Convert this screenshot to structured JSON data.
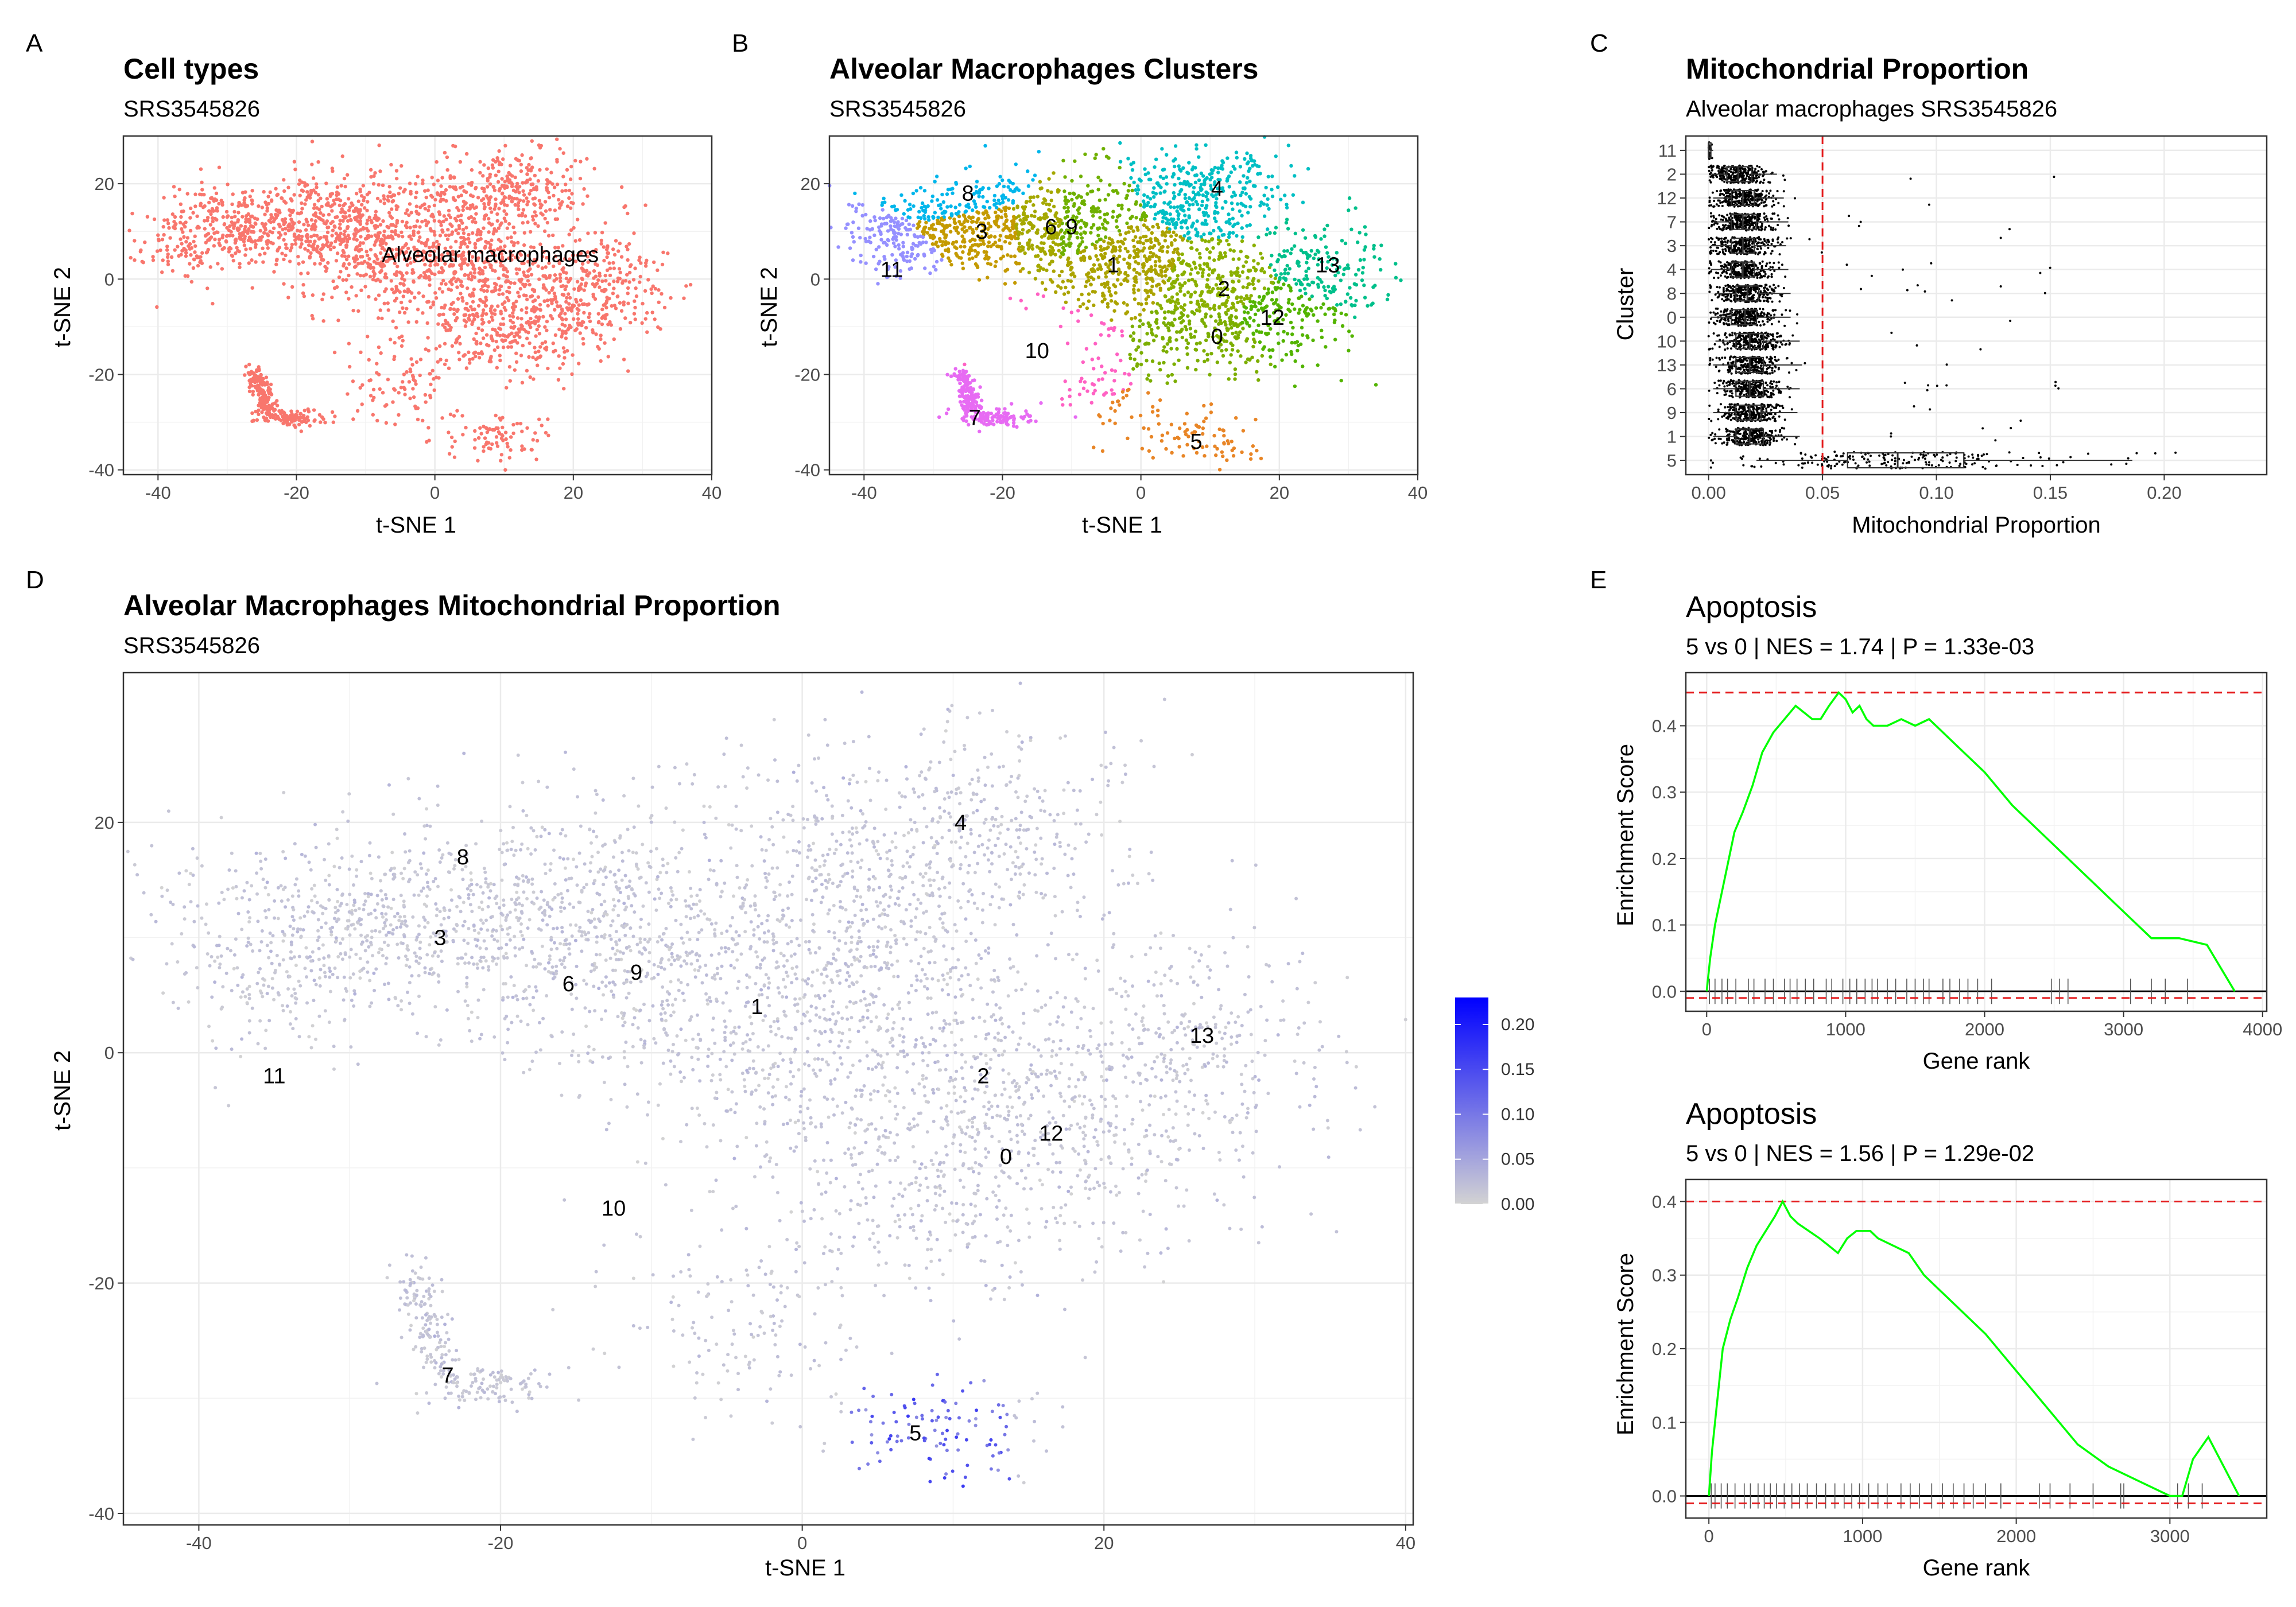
{
  "panel_labels": [
    "A",
    "B",
    "C",
    "D",
    "E"
  ],
  "chart_data": [
    {
      "id": "A",
      "type": "scatter",
      "title": "Cell types",
      "subtitle": "SRS3545826",
      "xlabel": "t-SNE 1",
      "ylabel": "t-SNE 2",
      "xlim": [
        -45,
        40
      ],
      "ylim": [
        -41,
        30
      ],
      "xticks": [
        -40,
        -20,
        0,
        20,
        40
      ],
      "yticks": [
        -40,
        -20,
        0,
        20
      ],
      "point_color": "#F8766D",
      "annotations": [
        {
          "text": "Alveolar macrophages",
          "x": 8,
          "y": 5
        }
      ]
    },
    {
      "id": "B",
      "type": "scatter",
      "title": "Alveolar Macrophages Clusters",
      "subtitle": "SRS3545826",
      "xlabel": "t-SNE 1",
      "ylabel": "t-SNE 2",
      "xlim": [
        -45,
        40
      ],
      "ylim": [
        -41,
        30
      ],
      "xticks": [
        -40,
        -20,
        0,
        20,
        40
      ],
      "yticks": [
        -40,
        -20,
        0,
        20
      ],
      "clusters": [
        {
          "label": "0",
          "x": 11,
          "y": -12,
          "color": "#7CAE00"
        },
        {
          "label": "1",
          "x": -4,
          "y": 3,
          "color": "#ABA300"
        },
        {
          "label": "2",
          "x": 12,
          "y": -2,
          "color": "#8BB000"
        },
        {
          "label": "3",
          "x": -23,
          "y": 10,
          "color": "#C49A00"
        },
        {
          "label": "4",
          "x": 11,
          "y": 19,
          "color": "#00BFC4"
        },
        {
          "label": "5",
          "x": 8,
          "y": -34,
          "color": "#E88526"
        },
        {
          "label": "6",
          "x": -13,
          "y": 11,
          "color": "#A5A800"
        },
        {
          "label": "7",
          "x": -24,
          "y": -29,
          "color": "#E76BF3"
        },
        {
          "label": "8",
          "x": -25,
          "y": 18,
          "color": "#00B6EB"
        },
        {
          "label": "9",
          "x": -10,
          "y": 11,
          "color": "#6FB000"
        },
        {
          "label": "10",
          "x": -15,
          "y": -15,
          "color": "#FF61C3"
        },
        {
          "label": "11",
          "x": -36,
          "y": 2,
          "color": "#9590FF"
        },
        {
          "label": "12",
          "x": 19,
          "y": -8,
          "color": "#53B400"
        },
        {
          "label": "13",
          "x": 27,
          "y": 3,
          "color": "#00C08B"
        }
      ]
    },
    {
      "id": "C",
      "type": "boxplot",
      "title": "Mitochondrial Proportion",
      "subtitle": "Alveolar macrophages SRS3545826",
      "xlabel": "Mitochondrial Proportion",
      "ylabel": "Cluster",
      "xlim": [
        -0.01,
        0.245
      ],
      "xticks": [
        "0.00",
        "0.05",
        "0.10",
        "0.15",
        "0.20"
      ],
      "reference_line": 0.05,
      "reference_color": "#E41A1C",
      "categories": [
        "11",
        "2",
        "12",
        "7",
        "3",
        "4",
        "8",
        "0",
        "10",
        "13",
        "6",
        "9",
        "1",
        "5"
      ],
      "boxes": [
        {
          "cluster": "11",
          "q1": 0.0,
          "median": 0.0,
          "q3": 0.001,
          "lo": 0.0,
          "hi": 0.002
        },
        {
          "cluster": "2",
          "q1": 0.008,
          "median": 0.013,
          "q3": 0.019,
          "lo": 0.001,
          "hi": 0.03
        },
        {
          "cluster": "12",
          "q1": 0.01,
          "median": 0.015,
          "q3": 0.02,
          "lo": 0.002,
          "hi": 0.033
        },
        {
          "cluster": "7",
          "q1": 0.01,
          "median": 0.015,
          "q3": 0.021,
          "lo": 0.002,
          "hi": 0.035
        },
        {
          "cluster": "3",
          "q1": 0.01,
          "median": 0.015,
          "q3": 0.02,
          "lo": 0.001,
          "hi": 0.034
        },
        {
          "cluster": "4",
          "q1": 0.01,
          "median": 0.015,
          "q3": 0.02,
          "lo": 0.001,
          "hi": 0.035
        },
        {
          "cluster": "8",
          "q1": 0.012,
          "median": 0.017,
          "q3": 0.022,
          "lo": 0.003,
          "hi": 0.036
        },
        {
          "cluster": "0",
          "q1": 0.01,
          "median": 0.016,
          "q3": 0.021,
          "lo": 0.001,
          "hi": 0.036
        },
        {
          "cluster": "10",
          "q1": 0.012,
          "median": 0.018,
          "q3": 0.024,
          "lo": 0.003,
          "hi": 0.04
        },
        {
          "cluster": "13",
          "q1": 0.012,
          "median": 0.018,
          "q3": 0.024,
          "lo": 0.002,
          "hi": 0.041
        },
        {
          "cluster": "6",
          "q1": 0.012,
          "median": 0.018,
          "q3": 0.024,
          "lo": 0.002,
          "hi": 0.04
        },
        {
          "cluster": "9",
          "q1": 0.012,
          "median": 0.018,
          "q3": 0.023,
          "lo": 0.002,
          "hi": 0.039
        },
        {
          "cluster": "1",
          "q1": 0.012,
          "median": 0.018,
          "q3": 0.024,
          "lo": 0.002,
          "hi": 0.04
        },
        {
          "cluster": "5",
          "q1": 0.061,
          "median": 0.083,
          "q3": 0.112,
          "lo": 0.021,
          "hi": 0.186
        }
      ]
    },
    {
      "id": "D",
      "type": "scatter",
      "title": "Alveolar Macrophages Mitochondrial Proportion",
      "subtitle": "SRS3545826",
      "xlabel": "t-SNE 1",
      "ylabel": "t-SNE 2",
      "xlim": [
        -45,
        40.5
      ],
      "ylim": [
        -41,
        33
      ],
      "xticks": [
        -40,
        -20,
        0,
        20,
        40
      ],
      "yticks": [
        -40,
        -20,
        0,
        20
      ],
      "color_scale": {
        "low": "#D3D3D3",
        "high": "#0000FF",
        "min": 0,
        "max": 0.23,
        "ticks": [
          "0.00",
          "0.05",
          "0.10",
          "0.15",
          "0.20"
        ]
      },
      "cluster_labels": [
        {
          "label": "0",
          "x": 13.5,
          "y": -9
        },
        {
          "label": "1",
          "x": -3,
          "y": 4
        },
        {
          "label": "2",
          "x": 12,
          "y": -2
        },
        {
          "label": "3",
          "x": -24,
          "y": 10
        },
        {
          "label": "4",
          "x": 10.5,
          "y": 20
        },
        {
          "label": "5",
          "x": 7.5,
          "y": -33
        },
        {
          "label": "6",
          "x": -15.5,
          "y": 6
        },
        {
          "label": "7",
          "x": -23.5,
          "y": -28
        },
        {
          "label": "8",
          "x": -22.5,
          "y": 17
        },
        {
          "label": "9",
          "x": -11,
          "y": 7
        },
        {
          "label": "10",
          "x": -12.5,
          "y": -13.5
        },
        {
          "label": "11",
          "x": -35,
          "y": -2
        },
        {
          "label": "12",
          "x": 16.5,
          "y": -7
        },
        {
          "label": "13",
          "x": 26.5,
          "y": 1.5
        }
      ]
    },
    {
      "id": "E1",
      "type": "line",
      "title": "Apoptosis",
      "subtitle": "5 vs 0 | NES = 1.74 | P = 1.33e-03",
      "xlabel": "Gene rank",
      "ylabel": "Enrichment Score",
      "xlim": [
        -150,
        4030
      ],
      "ylim": [
        -0.03,
        0.48
      ],
      "xticks": [
        0,
        1000,
        2000,
        3000,
        4000
      ],
      "yticks": [
        "0.0",
        "0.1",
        "0.2",
        "0.3",
        "0.4"
      ],
      "max_es": 0.45,
      "line_color": "#00FF00",
      "x": [
        0,
        25,
        60,
        100,
        150,
        200,
        260,
        330,
        400,
        480,
        560,
        640,
        700,
        760,
        820,
        880,
        950,
        1000,
        1050,
        1100,
        1150,
        1200,
        1300,
        1400,
        1500,
        1600,
        1700,
        1800,
        2000,
        2200,
        2400,
        2600,
        2800,
        3000,
        3200,
        3400,
        3600,
        3800
      ],
      "values": [
        0,
        0.05,
        0.1,
        0.14,
        0.19,
        0.24,
        0.27,
        0.31,
        0.36,
        0.39,
        0.41,
        0.43,
        0.42,
        0.41,
        0.41,
        0.43,
        0.45,
        0.44,
        0.42,
        0.43,
        0.41,
        0.4,
        0.4,
        0.41,
        0.4,
        0.41,
        0.39,
        0.37,
        0.33,
        0.28,
        0.24,
        0.2,
        0.16,
        0.12,
        0.08,
        0.08,
        0.07,
        0.0
      ],
      "hits": [
        20,
        60,
        110,
        150,
        210,
        300,
        340,
        420,
        480,
        560,
        600,
        650,
        710,
        770,
        860,
        900,
        980,
        1030,
        1080,
        1140,
        1190,
        1230,
        1300,
        1360,
        1440,
        1500,
        1560,
        1600,
        1700,
        1750,
        1820,
        1880,
        1950,
        2050,
        2480,
        2540,
        2600,
        3050,
        3200,
        3300,
        3460
      ]
    },
    {
      "id": "E2",
      "type": "line",
      "title": "Apoptosis",
      "subtitle": "5 vs 0 | NES = 1.56 | P = 1.29e-02",
      "xlabel": "Gene rank",
      "ylabel": "Enrichment Score",
      "xlim": [
        -150,
        3630
      ],
      "ylim": [
        -0.03,
        0.43
      ],
      "xticks": [
        0,
        1000,
        2000,
        3000
      ],
      "yticks": [
        "0.0",
        "0.1",
        "0.2",
        "0.3",
        "0.4"
      ],
      "max_es": 0.4,
      "line_color": "#00FF00",
      "x": [
        0,
        20,
        50,
        90,
        140,
        190,
        250,
        310,
        370,
        430,
        480,
        530,
        580,
        650,
        720,
        780,
        840,
        900,
        960,
        1000,
        1050,
        1100,
        1200,
        1300,
        1400,
        1500,
        1600,
        1800,
        2000,
        2200,
        2400,
        2600,
        2800,
        3000,
        3080,
        3150,
        3250,
        3450
      ],
      "values": [
        0,
        0.06,
        0.12,
        0.2,
        0.24,
        0.27,
        0.31,
        0.34,
        0.36,
        0.38,
        0.4,
        0.38,
        0.37,
        0.36,
        0.35,
        0.34,
        0.33,
        0.35,
        0.36,
        0.36,
        0.36,
        0.35,
        0.34,
        0.33,
        0.3,
        0.28,
        0.26,
        0.22,
        0.17,
        0.12,
        0.07,
        0.04,
        0.02,
        0.0,
        0.0,
        0.05,
        0.08,
        0.0
      ],
      "hits": [
        15,
        40,
        80,
        120,
        170,
        230,
        270,
        320,
        360,
        400,
        440,
        490,
        540,
        590,
        640,
        700,
        760,
        820,
        880,
        930,
        980,
        1040,
        1100,
        1160,
        1250,
        1310,
        1370,
        1450,
        1520,
        1590,
        1660,
        1720,
        1800,
        1900,
        2150,
        2220,
        2350,
        2500,
        2680,
        2700,
        3050,
        3120,
        3210
      ]
    }
  ]
}
